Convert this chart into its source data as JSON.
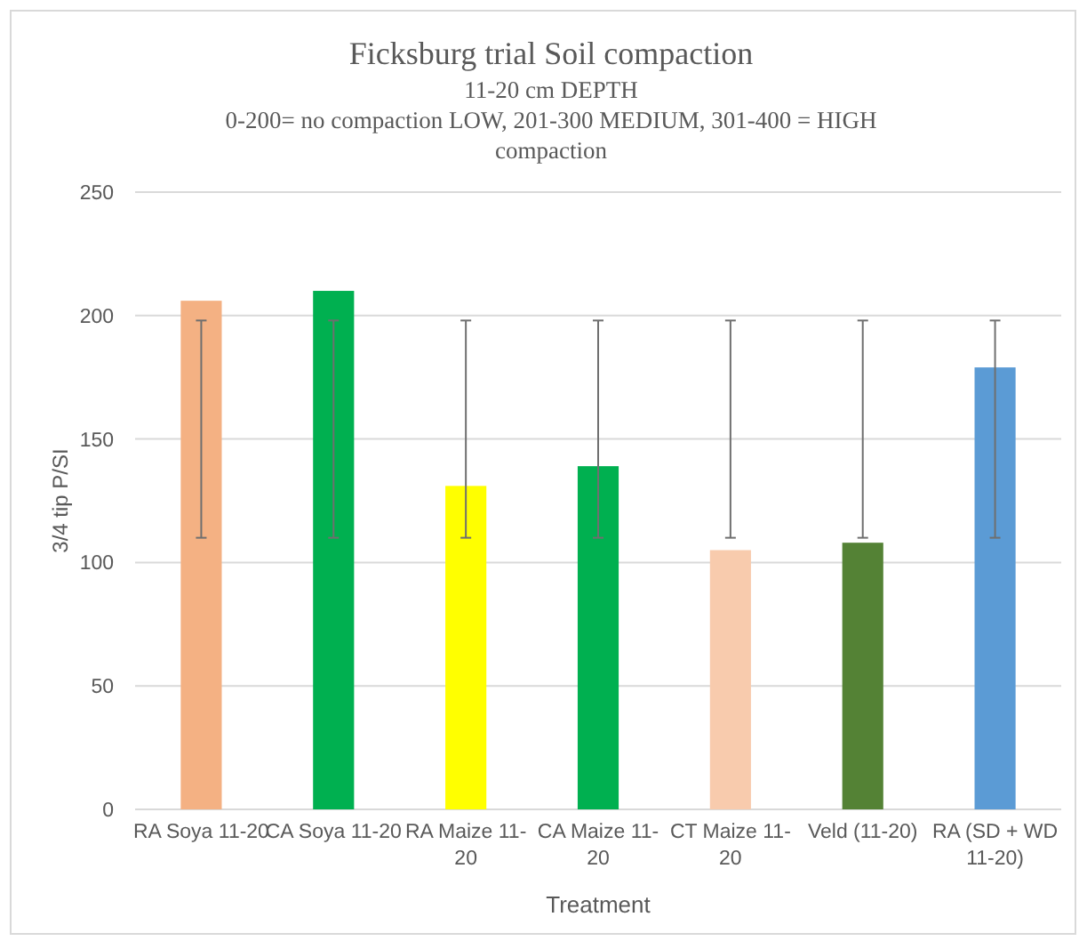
{
  "chart_data": {
    "type": "bar",
    "title": "Ficksburg  trial  Soil compaction",
    "subtitle": "11-20  cm DEPTH",
    "annotations": [
      "0-200= no compaction LOW, 201-300 MEDIUM, 301-400 = HIGH compaction"
    ],
    "xlabel": "Treatment",
    "ylabel": "3/4 tip P/SI",
    "categories": [
      "RA Soya 11-20",
      "CA Soya 11-20",
      "RA Maize 11-20",
      "CA Maize 11-20",
      "CT Maize 11-20",
      "Veld (11-20)",
      "RA (SD + WD 11-20)"
    ],
    "values": [
      206,
      210,
      131,
      139,
      105,
      108,
      179
    ],
    "colors": [
      "#f4b183",
      "#00b050",
      "#ffff00",
      "#00b050",
      "#f8cbad",
      "#548235",
      "#5b9bd5"
    ],
    "errors": [
      [
        110,
        198
      ],
      [
        110,
        198
      ],
      [
        110,
        198
      ],
      [
        110,
        198
      ],
      [
        110,
        198
      ],
      [
        110,
        198
      ],
      [
        110,
        198
      ]
    ],
    "ylim": [
      0,
      250
    ],
    "yticks": [
      0,
      50,
      100,
      150,
      200,
      250
    ],
    "grid": "y"
  }
}
